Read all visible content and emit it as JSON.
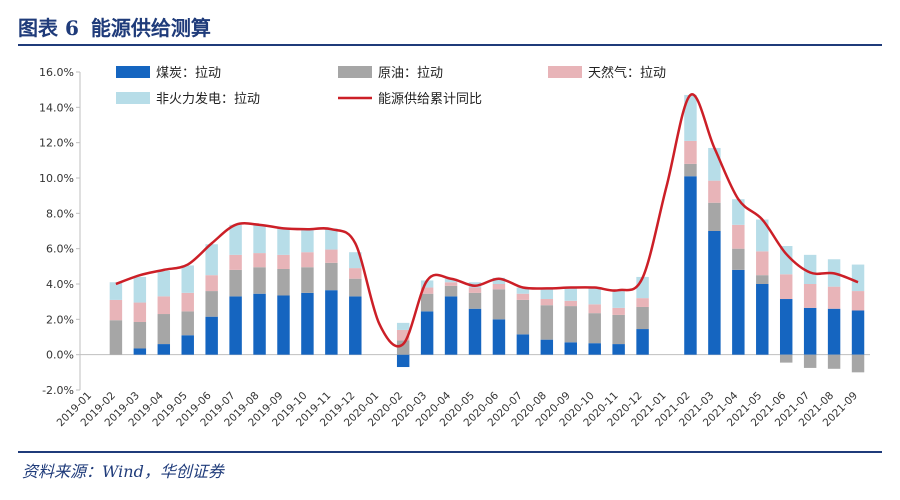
{
  "header": {
    "prefix": "图表 6",
    "title": "能源供给测算"
  },
  "source": "资料来源：Wind，华创证券",
  "colors": {
    "coal": "#1565c0",
    "oil": "#a6a6a6",
    "gas": "#e8b4b8",
    "nonfossil": "#b7dde8",
    "line": "#cc1f27",
    "title": "#1f3b7a"
  },
  "chart_data": {
    "type": "bar",
    "stacked": true,
    "categories": [
      "2019-01",
      "2019-02",
      "2019-03",
      "2019-04",
      "2019-05",
      "2019-06",
      "2019-07",
      "2019-08",
      "2019-09",
      "2019-10",
      "2019-11",
      "2019-12",
      "2020-01",
      "2020-02",
      "2020-03",
      "2020-04",
      "2020-05",
      "2020-06",
      "2020-07",
      "2020-08",
      "2020-09",
      "2020-10",
      "2020-11",
      "2020-12",
      "2021-01",
      "2021-02",
      "2021-03",
      "2021-04",
      "2021-05",
      "2021-06",
      "2021-07",
      "2021-08",
      "2021-09"
    ],
    "y_tick_labels": [
      "-2.0%",
      "0.0%",
      "2.0%",
      "4.0%",
      "6.0%",
      "8.0%",
      "10.0%",
      "12.0%",
      "14.0%",
      "16.0%"
    ],
    "ylim": [
      -2,
      16
    ],
    "legend_placement": "top",
    "grid": false,
    "series": [
      {
        "name": "煤炭：拉动",
        "kind": "bar",
        "values": [
          null,
          0.0,
          0.35,
          0.6,
          1.1,
          2.15,
          3.3,
          3.45,
          3.35,
          3.5,
          3.65,
          3.3,
          null,
          -0.7,
          2.45,
          3.3,
          2.6,
          2.0,
          1.15,
          0.85,
          0.7,
          0.65,
          0.6,
          1.45,
          null,
          10.1,
          7.0,
          4.8,
          4.0,
          3.15,
          2.65,
          2.6,
          2.5
        ]
      },
      {
        "name": "原油：拉动",
        "kind": "bar",
        "values": [
          null,
          1.95,
          1.5,
          1.7,
          1.35,
          1.45,
          1.5,
          1.5,
          1.5,
          1.45,
          1.55,
          1.0,
          null,
          0.8,
          1.0,
          0.6,
          0.9,
          1.7,
          1.95,
          1.95,
          2.05,
          1.7,
          1.65,
          1.25,
          null,
          0.7,
          1.6,
          1.2,
          0.5,
          -0.45,
          -0.75,
          -0.8,
          -1.0
        ]
      },
      {
        "name": "天然气：拉动",
        "kind": "bar",
        "values": [
          null,
          1.15,
          1.1,
          1.0,
          1.05,
          0.9,
          0.85,
          0.8,
          0.8,
          0.85,
          0.75,
          0.6,
          null,
          0.6,
          0.35,
          0.2,
          0.3,
          0.3,
          0.35,
          0.35,
          0.3,
          0.5,
          0.4,
          0.5,
          null,
          1.3,
          1.25,
          1.35,
          1.35,
          1.4,
          1.35,
          1.25,
          1.1
        ]
      },
      {
        "name": "非火力发电：拉动",
        "kind": "bar",
        "values": [
          null,
          1.0,
          1.45,
          1.45,
          1.55,
          1.75,
          1.7,
          1.6,
          1.5,
          1.3,
          1.2,
          0.9,
          null,
          0.4,
          0.4,
          0.2,
          0.3,
          0.35,
          0.35,
          0.55,
          0.8,
          0.95,
          1.0,
          1.2,
          null,
          2.6,
          1.85,
          1.45,
          1.8,
          1.6,
          1.65,
          1.55,
          1.5
        ]
      },
      {
        "name": "能源供给累计同比",
        "kind": "line",
        "values": [
          null,
          4.0,
          4.5,
          4.8,
          5.1,
          6.3,
          7.35,
          7.35,
          7.15,
          7.1,
          7.1,
          6.3,
          null,
          0.6,
          4.2,
          4.3,
          3.9,
          4.3,
          3.8,
          3.75,
          3.8,
          3.8,
          3.65,
          4.35,
          null,
          14.7,
          11.7,
          8.8,
          7.65,
          5.7,
          4.65,
          4.6,
          4.1
        ]
      }
    ]
  }
}
